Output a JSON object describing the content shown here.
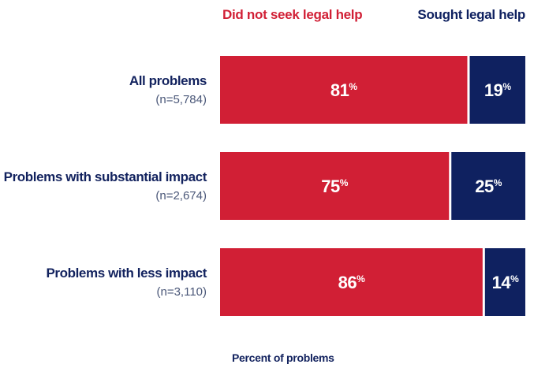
{
  "chart_data": {
    "type": "bar",
    "orientation": "horizontal",
    "stacked": true,
    "categories": [
      "All problems",
      "Problems with substantial impact",
      "Problems with less impact"
    ],
    "sample_sizes": [
      "(n=5,784)",
      "(n=2,674)",
      "(n=3,110)"
    ],
    "series": [
      {
        "name": "Did not seek legal help",
        "color": "#d11f35",
        "values": [
          81,
          75,
          86
        ]
      },
      {
        "name": "Sought legal help",
        "color": "#0f2160",
        "values": [
          19,
          25,
          14
        ]
      }
    ],
    "value_suffix": "%",
    "xlabel": "Percent of problems",
    "ylabel": "",
    "xlim": [
      0,
      100
    ],
    "grid": false,
    "legend_position": "top"
  }
}
